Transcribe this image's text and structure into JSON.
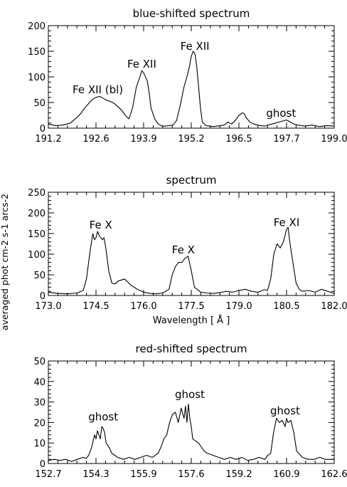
{
  "ylabel": "averaged phot cm-2 s-1 arcs-2",
  "chart_data": [
    {
      "type": "line",
      "title": "blue-shifted spectrum",
      "xlabel": "",
      "xlim": [
        191.2,
        199.0
      ],
      "ylim": [
        0,
        200
      ],
      "xticks": [
        "191.2",
        "192.6",
        "193.9",
        "195.2",
        "196.5",
        "197.7",
        "199.0"
      ],
      "yticks": [
        "0",
        "50",
        "100",
        "150",
        "200"
      ],
      "annotations": [
        {
          "text": "Fe XII (bl)",
          "x": 192.55,
          "y": 68
        },
        {
          "text": "Fe XII",
          "x": 193.75,
          "y": 118
        },
        {
          "text": "Fe XII",
          "x": 195.2,
          "y": 153
        },
        {
          "text": "ghost",
          "x": 197.55,
          "y": 22
        }
      ],
      "series": [
        {
          "x": [
            191.2,
            191.4,
            191.6,
            191.8,
            192.0,
            192.1,
            192.2,
            192.3,
            192.4,
            192.5,
            192.6,
            192.7,
            192.8,
            192.9,
            193.0,
            193.1,
            193.2,
            193.3,
            193.4,
            193.5,
            193.55,
            193.6,
            193.7,
            193.75,
            193.8,
            193.9,
            193.95,
            194.0,
            194.1,
            194.2,
            194.3,
            194.4,
            194.5,
            194.6,
            194.7,
            194.8,
            194.9,
            195.0,
            195.05,
            195.1,
            195.15,
            195.2,
            195.25,
            195.3,
            195.35,
            195.4,
            195.5,
            195.6,
            195.7,
            195.8,
            195.9,
            196.0,
            196.1,
            196.2,
            196.3,
            196.4,
            196.5,
            196.55,
            196.6,
            196.7,
            196.8,
            196.9,
            197.0,
            197.1,
            197.2,
            197.3,
            197.4,
            197.5,
            197.6,
            197.7,
            197.8,
            197.9,
            198.0,
            198.2,
            198.4,
            198.6,
            198.8,
            199.0
          ],
          "y": [
            8,
            5,
            6,
            10,
            22,
            30,
            40,
            48,
            56,
            60,
            62,
            58,
            54,
            52,
            48,
            42,
            35,
            25,
            18,
            40,
            60,
            80,
            100,
            112,
            108,
            92,
            70,
            40,
            18,
            8,
            4,
            4,
            5,
            6,
            15,
            45,
            80,
            105,
            120,
            140,
            150,
            145,
            120,
            80,
            40,
            12,
            5,
            4,
            3,
            4,
            5,
            6,
            12,
            8,
            15,
            25,
            30,
            28,
            20,
            12,
            8,
            6,
            5,
            4,
            6,
            8,
            10,
            12,
            14,
            16,
            12,
            8,
            6,
            4,
            6,
            3,
            5,
            4
          ]
        }
      ]
    },
    {
      "type": "line",
      "title": "spectrum",
      "xlabel": "Wavelength [ Å ]",
      "xlim": [
        173.0,
        182.0
      ],
      "ylim": [
        0,
        250
      ],
      "xticks": [
        "173.0",
        "174.5",
        "176.0",
        "177.5",
        "179.0",
        "180.5",
        "182.0"
      ],
      "yticks": [
        "0",
        "50",
        "100",
        "150",
        "200",
        "250"
      ],
      "annotations": [
        {
          "text": "Fe X",
          "x": 174.65,
          "y": 162
        },
        {
          "text": "Fe X",
          "x": 177.25,
          "y": 102
        },
        {
          "text": "Fe XI",
          "x": 180.5,
          "y": 168
        }
      ],
      "series": [
        {
          "x": [
            173.0,
            173.3,
            173.6,
            173.9,
            174.1,
            174.2,
            174.3,
            174.4,
            174.45,
            174.5,
            174.55,
            174.6,
            174.7,
            174.75,
            174.8,
            174.9,
            175.0,
            175.1,
            175.2,
            175.4,
            175.6,
            175.8,
            176.0,
            176.2,
            176.4,
            176.6,
            176.8,
            176.9,
            177.0,
            177.1,
            177.2,
            177.3,
            177.4,
            177.5,
            177.6,
            177.8,
            178.0,
            178.2,
            178.4,
            178.6,
            178.8,
            179.0,
            179.2,
            179.4,
            179.6,
            179.8,
            179.9,
            180.0,
            180.1,
            180.2,
            180.3,
            180.4,
            180.45,
            180.5,
            180.55,
            180.6,
            180.7,
            180.8,
            180.9,
            181.0,
            181.2,
            181.4,
            181.6,
            181.8,
            182.0
          ],
          "y": [
            8,
            5,
            4,
            6,
            12,
            40,
            100,
            150,
            135,
            140,
            155,
            145,
            135,
            140,
            120,
            60,
            30,
            28,
            35,
            40,
            25,
            15,
            8,
            5,
            4,
            6,
            15,
            50,
            70,
            80,
            80,
            90,
            95,
            60,
            20,
            8,
            6,
            5,
            7,
            10,
            8,
            12,
            15,
            10,
            8,
            14,
            12,
            40,
            100,
            125,
            115,
            130,
            145,
            160,
            165,
            130,
            80,
            30,
            15,
            10,
            12,
            8,
            15,
            10,
            5
          ]
        }
      ]
    },
    {
      "type": "line",
      "title": "red-shifted spectrum",
      "xlabel": "",
      "xlim": [
        152.7,
        162.6
      ],
      "ylim": [
        0,
        50
      ],
      "xticks": [
        "152.7",
        "154.3",
        "155.9",
        "157.6",
        "159.2",
        "160.9",
        "162.6"
      ],
      "yticks": [
        "0",
        "10",
        "20",
        "30",
        "40",
        "50"
      ],
      "annotations": [
        {
          "text": "ghost",
          "x": 154.6,
          "y": 21
        },
        {
          "text": "ghost",
          "x": 157.6,
          "y": 32
        },
        {
          "text": "ghost",
          "x": 160.9,
          "y": 24
        }
      ],
      "series": [
        {
          "x": [
            152.7,
            152.9,
            153.1,
            153.3,
            153.5,
            153.7,
            153.9,
            154.0,
            154.1,
            154.2,
            154.3,
            154.35,
            154.4,
            154.5,
            154.55,
            154.6,
            154.65,
            154.7,
            154.8,
            154.9,
            155.0,
            155.1,
            155.3,
            155.5,
            155.7,
            155.9,
            156.1,
            156.3,
            156.5,
            156.6,
            156.7,
            156.8,
            156.9,
            157.0,
            157.1,
            157.2,
            157.3,
            157.4,
            157.45,
            157.5,
            157.55,
            157.6,
            157.65,
            157.7,
            157.8,
            157.9,
            158.0,
            158.1,
            158.2,
            158.4,
            158.6,
            158.8,
            159.0,
            159.2,
            159.4,
            159.6,
            159.8,
            160.0,
            160.2,
            160.3,
            160.4,
            160.5,
            160.6,
            160.7,
            160.8,
            160.9,
            160.95,
            161.0,
            161.1,
            161.2,
            161.3,
            161.5,
            161.7,
            161.9,
            162.1,
            162.3,
            162.6
          ],
          "y": [
            1.5,
            2,
            1.5,
            2,
            1,
            2,
            3,
            2.5,
            4,
            8,
            14,
            12,
            16,
            12,
            18,
            17,
            15,
            10,
            8,
            5,
            4,
            3,
            2,
            3,
            2,
            3,
            4,
            3,
            5,
            8,
            12,
            14,
            20,
            24,
            25,
            20,
            27,
            22,
            28,
            20,
            29,
            22,
            18,
            12,
            11,
            10,
            8,
            6,
            5,
            4,
            3,
            2,
            3,
            2,
            3,
            1.5,
            2,
            3,
            2,
            4,
            5,
            15,
            22,
            20,
            21,
            18,
            22,
            20,
            21,
            15,
            6,
            3,
            2,
            2,
            3,
            2,
            2
          ]
        }
      ]
    }
  ]
}
